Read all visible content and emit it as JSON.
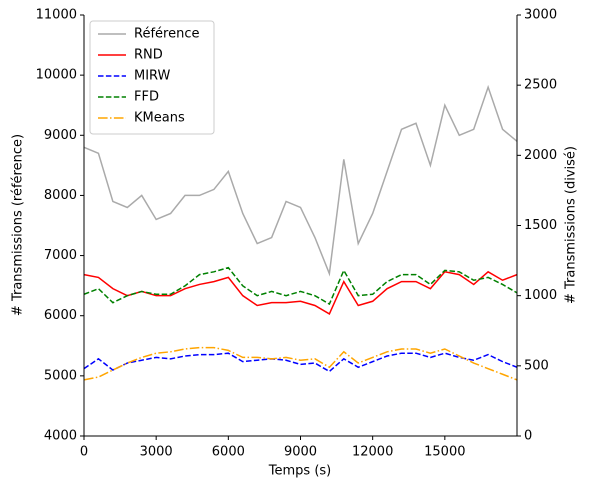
{
  "chart_data": {
    "type": "line",
    "xlabel": "Temps (s)",
    "ylabel": "# Transmissions (référence)",
    "y2label": "# Transmissions (divisé)",
    "x": [
      0,
      600,
      1200,
      1800,
      2400,
      3000,
      3600,
      4200,
      4800,
      5400,
      6000,
      6600,
      7200,
      7800,
      8400,
      9000,
      9600,
      10200,
      10800,
      11400,
      12000,
      12600,
      13200,
      13800,
      14400,
      15000,
      15600,
      16200,
      16800,
      17400,
      18000
    ],
    "xlim": [
      0,
      18000
    ],
    "xticks": [
      0,
      3000,
      6000,
      9000,
      12000,
      15000
    ],
    "ylim": [
      4000,
      11000
    ],
    "yticks": [
      4000,
      5000,
      6000,
      7000,
      8000,
      9000,
      10000,
      11000
    ],
    "y2lim": [
      0,
      3000
    ],
    "y2ticks": [
      0,
      500,
      1000,
      1500,
      2000,
      2500,
      3000
    ],
    "legend": "upper left",
    "series": [
      {
        "name": "Référence",
        "color": "#aaaaaa",
        "dash": "solid",
        "values": [
          8800,
          8700,
          7900,
          7800,
          8000,
          7600,
          7700,
          8000,
          8000,
          8100,
          8400,
          7700,
          7200,
          7300,
          7900,
          7800,
          7300,
          6700,
          8600,
          7200,
          7700,
          8400,
          9100,
          9200,
          8500,
          9500,
          9000,
          9100,
          9800,
          9100,
          8900
        ]
      },
      {
        "name": "RND",
        "color": "#ff0000",
        "dash": "solid",
        "axis": "y2",
        "values": [
          1150,
          1130,
          1050,
          1000,
          1030,
          1000,
          1000,
          1050,
          1080,
          1100,
          1130,
          1000,
          930,
          950,
          950,
          960,
          930,
          870,
          1100,
          930,
          960,
          1050,
          1100,
          1100,
          1050,
          1170,
          1150,
          1080,
          1170,
          1110,
          1150
        ]
      },
      {
        "name": "MIRW",
        "color": "#0000ff",
        "dash": "dashed",
        "axis": "y2",
        "values": [
          480,
          550,
          470,
          520,
          540,
          560,
          550,
          570,
          580,
          580,
          590,
          530,
          540,
          550,
          540,
          510,
          520,
          460,
          550,
          490,
          530,
          570,
          590,
          590,
          560,
          590,
          560,
          540,
          580,
          530,
          490
        ]
      },
      {
        "name": "FFD",
        "color": "#008000",
        "dash": "dashed",
        "axis": "y2",
        "values": [
          1010,
          1050,
          950,
          1000,
          1030,
          1010,
          1010,
          1070,
          1150,
          1170,
          1200,
          1070,
          1000,
          1030,
          1000,
          1030,
          1000,
          940,
          1180,
          1000,
          1010,
          1100,
          1150,
          1150,
          1080,
          1180,
          1170,
          1110,
          1130,
          1080,
          1020
        ]
      },
      {
        "name": "KMeans",
        "color": "#ffa500",
        "dash": "dashdot",
        "axis": "y2",
        "values": [
          400,
          420,
          470,
          520,
          560,
          590,
          600,
          620,
          630,
          630,
          610,
          560,
          560,
          550,
          560,
          540,
          550,
          490,
          600,
          520,
          560,
          600,
          620,
          620,
          590,
          620,
          570,
          520,
          480,
          440,
          400
        ]
      }
    ]
  }
}
